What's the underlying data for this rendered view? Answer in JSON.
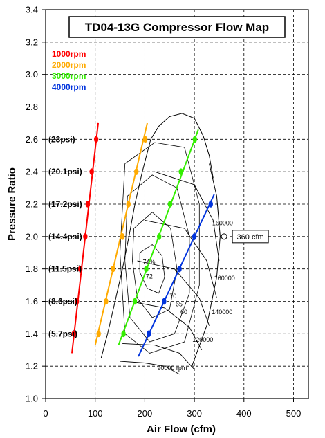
{
  "chart_data": {
    "type": "line",
    "title": "TD04-13G Compressor Flow Map",
    "xlabel": "Air Flow (cfm)",
    "ylabel": "Pressure Ratio",
    "xlim": [
      0,
      530
    ],
    "ylim": [
      1.0,
      3.4
    ],
    "x_ticks": [
      "0",
      "100",
      "200",
      "300",
      "400",
      "500"
    ],
    "y_ticks": [
      "1.0",
      "1.2",
      "1.4",
      "1.6",
      "1.8",
      "2.0",
      "2.2",
      "2.4",
      "2.6",
      "2.8",
      "3.0",
      "3.2",
      "3.4"
    ],
    "grid": "dashed",
    "legend_position": "top-left",
    "pressure_labels": [
      {
        "y": 2.6,
        "text": "(23psi)"
      },
      {
        "y": 2.4,
        "text": "(20.1psi)"
      },
      {
        "y": 2.2,
        "text": "(17.2psi)"
      },
      {
        "y": 2.0,
        "text": "(14.4psi)"
      },
      {
        "y": 1.8,
        "text": "(11.5psi)"
      },
      {
        "y": 1.6,
        "text": "(8.6psi)"
      },
      {
        "y": 1.4,
        "text": "(5.7psi)"
      }
    ],
    "series": [
      {
        "name": "1000rpm",
        "color": "#ff0000",
        "line": [
          [
            53,
            1.28
          ],
          [
            106,
            2.7
          ]
        ],
        "points": [
          [
            57,
            1.4
          ],
          [
            63,
            1.6
          ],
          [
            70,
            1.8
          ],
          [
            80,
            2.0
          ],
          [
            85,
            2.2
          ],
          [
            93,
            2.4
          ],
          [
            102,
            2.6
          ]
        ]
      },
      {
        "name": "2000rpm",
        "color": "#ffaa00",
        "line": [
          [
            100,
            1.33
          ],
          [
            205,
            2.7
          ]
        ],
        "points": [
          [
            107,
            1.4
          ],
          [
            122,
            1.6
          ],
          [
            136,
            1.8
          ],
          [
            155,
            2.0
          ],
          [
            167,
            2.2
          ],
          [
            183,
            2.4
          ],
          [
            201,
            2.6
          ]
        ]
      },
      {
        "name": "3000rpm",
        "color": "#33ee00",
        "line": [
          [
            147,
            1.33
          ],
          [
            308,
            2.66
          ]
        ],
        "points": [
          [
            157,
            1.4
          ],
          [
            180,
            1.6
          ],
          [
            203,
            1.8
          ],
          [
            229,
            2.0
          ],
          [
            251,
            2.2
          ],
          [
            273,
            2.4
          ],
          [
            301,
            2.6
          ]
        ]
      },
      {
        "name": "4000rpm",
        "color": "#0033dd",
        "line": [
          [
            187,
            1.26
          ],
          [
            340,
            2.26
          ]
        ],
        "points": [
          [
            208,
            1.4
          ],
          [
            239,
            1.6
          ],
          [
            270,
            1.8
          ],
          [
            300,
            2.0
          ],
          [
            333,
            2.2
          ]
        ]
      }
    ],
    "map_labels": [
      {
        "text": "160000",
        "x": 336,
        "y": 2.07
      },
      {
        "text": "160000",
        "x": 340,
        "y": 1.73
      },
      {
        "text": "140000",
        "x": 335,
        "y": 1.52
      },
      {
        "text": "120000",
        "x": 296,
        "y": 1.35
      },
      {
        "text": "90000 rpm",
        "x": 225,
        "y": 1.175
      },
      {
        "text": "74%",
        "x": 196,
        "y": 1.83
      },
      {
        "text": "72",
        "x": 202,
        "y": 1.74
      },
      {
        "text": "70",
        "x": 250,
        "y": 1.62
      },
      {
        "text": "65",
        "x": 262,
        "y": 1.57
      },
      {
        "text": "60",
        "x": 272,
        "y": 1.52
      }
    ],
    "callout": {
      "text": "360 cfm",
      "x": 360,
      "y": 2.0
    }
  }
}
